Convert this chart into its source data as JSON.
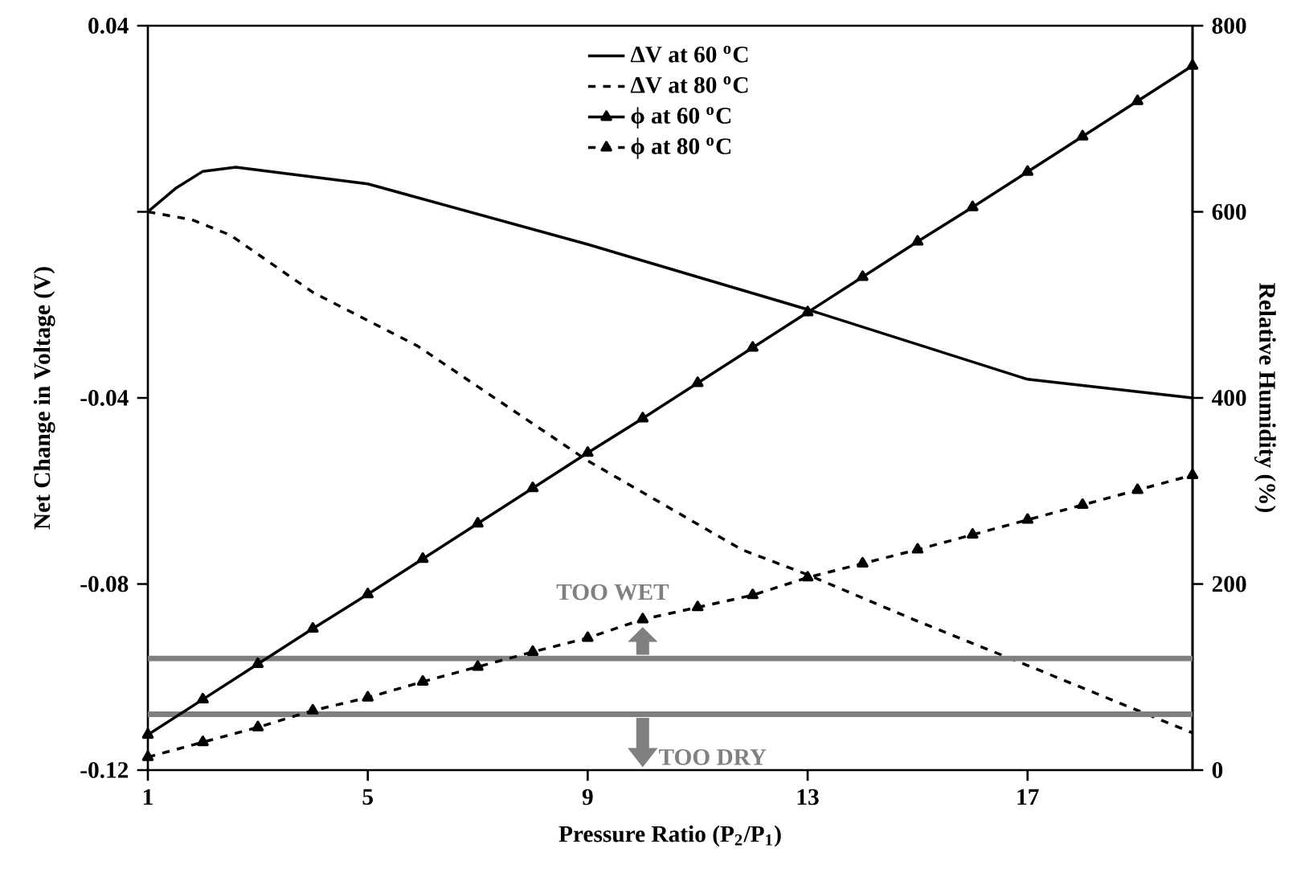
{
  "chart_data": {
    "type": "line",
    "xlabel": "Pressure Ratio (P$_{2}$/P$_{1}$)",
    "ylabel": "Net Change in Voltage (V)",
    "y2label": "Relative Humidity (%)",
    "xlim": [
      1,
      20
    ],
    "xticks": [
      1,
      5,
      9,
      13,
      17
    ],
    "ylim": [
      -0.12,
      0.04
    ],
    "yticks": [
      -0.12,
      -0.08,
      -0.04,
      {
        "value": 0,
        "label": null
      },
      0.04
    ],
    "y2lim": [
      0,
      800
    ],
    "y2ticks": [
      0,
      200,
      400,
      600,
      800
    ],
    "legend": "top",
    "series": [
      {
        "name": "ΔV at 60 $^{o}$C",
        "color": "#000000",
        "marker": "none",
        "line_style": "solid",
        "x": [
          1,
          1.5,
          2,
          2.6,
          5,
          9,
          13,
          17,
          20
        ],
        "values": [
          0,
          0.005,
          0.0087,
          0.0096,
          0.006,
          -0.007,
          -0.021,
          -0.036,
          -0.04
        ]
      },
      {
        "name": "ΔV at 80 $^{o}$C",
        "color": "#000000",
        "marker": "none",
        "line_style": "dashed",
        "x": [
          1,
          1.8,
          2.5,
          4,
          5.9,
          9,
          11.8,
          13,
          15,
          17,
          20
        ],
        "values": [
          0,
          -0.0017,
          -0.005,
          -0.0173,
          -0.0288,
          -0.0535,
          -0.0726,
          -0.078,
          -0.088,
          -0.0975,
          -0.112
        ]
      },
      {
        "name": "ϕ at 60 $^{o}$C",
        "color": "#000000",
        "marker": "triangle",
        "line_style": "solid",
        "axis": "y2",
        "x": [
          1,
          2,
          3,
          4,
          5,
          6,
          7,
          8,
          9,
          10,
          11,
          12,
          13,
          14,
          15,
          16,
          17,
          18,
          19,
          20
        ],
        "values": [
          38,
          76,
          114,
          152,
          189,
          227,
          265,
          303,
          341,
          378,
          416,
          454,
          492,
          530,
          568,
          605,
          643,
          681,
          719,
          757
        ]
      },
      {
        "name": "ϕ at 80 $^{o}$C",
        "color": "#000000",
        "marker": "triangle",
        "line_style": "dashed",
        "axis": "y2",
        "x": [
          1,
          2,
          3,
          4,
          5,
          6,
          7,
          8,
          9,
          10,
          11,
          12,
          13,
          14,
          15,
          16,
          17,
          18,
          19,
          20
        ],
        "values": [
          14,
          30,
          46,
          64,
          78,
          95,
          111,
          127,
          142,
          162,
          175,
          188,
          207,
          222,
          237,
          253,
          269,
          285,
          301,
          317
        ]
      }
    ],
    "ref_lines": [
      {
        "axis": "y2",
        "value": 120,
        "color": "#808080"
      },
      {
        "axis": "y2",
        "value": 60,
        "color": "#808080"
      }
    ],
    "annotations": [
      "TOO WET",
      "TOO DRY"
    ]
  }
}
